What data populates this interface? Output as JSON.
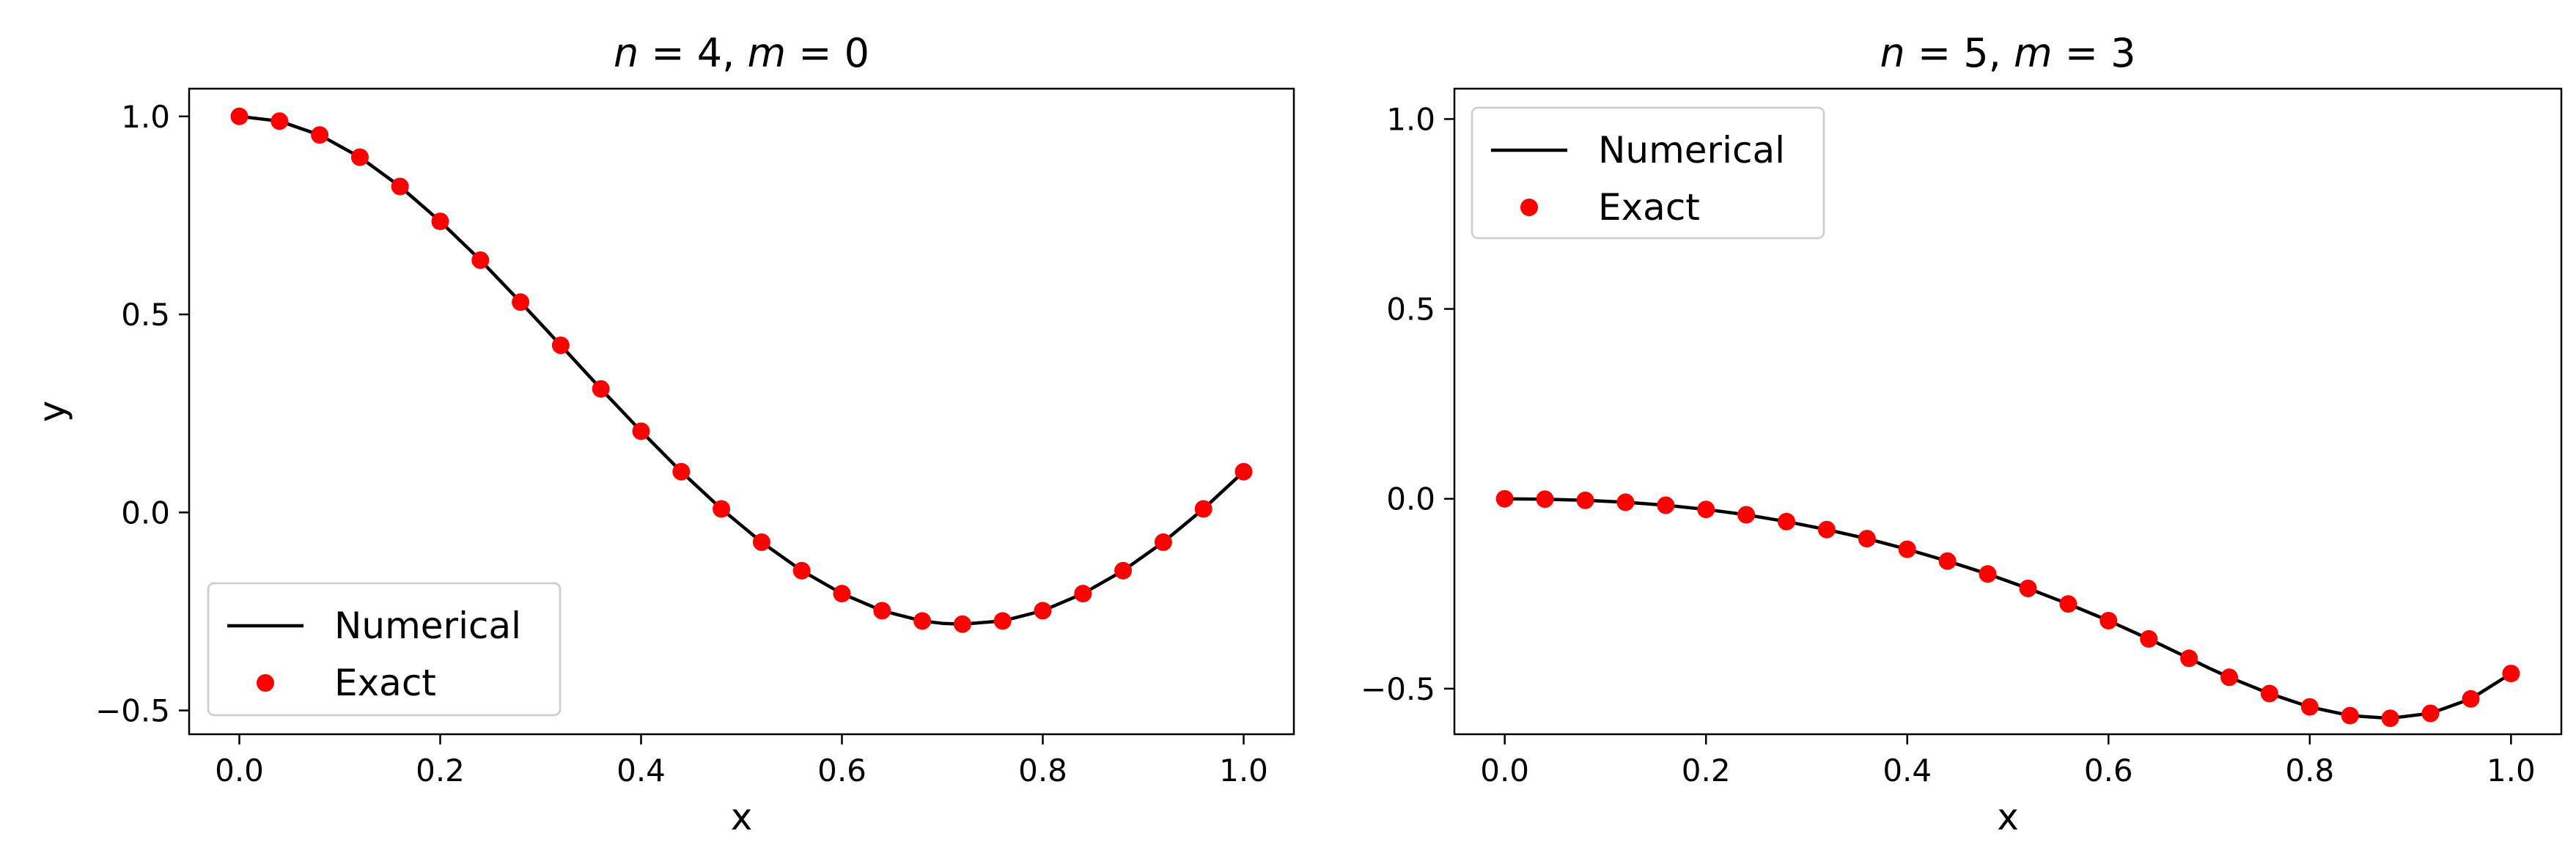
{
  "chart_data": [
    {
      "type": "line",
      "title": "n = 4, m = 0",
      "title_parts": [
        "n",
        " = 4, ",
        "m",
        " = 0"
      ],
      "xlabel": "x",
      "ylabel": "y",
      "xlim": [
        -0.05,
        1.05
      ],
      "ylim": [
        -0.56,
        1.07
      ],
      "xticks": [
        0.0,
        0.2,
        0.4,
        0.6,
        0.8,
        1.0
      ],
      "xtick_labels": [
        "0.0",
        "0.2",
        "0.4",
        "0.6",
        "0.8",
        "1.0"
      ],
      "yticks": [
        -0.5,
        0.0,
        0.5,
        1.0
      ],
      "ytick_labels": [
        "−0.5",
        "0.0",
        "0.5",
        "1.0"
      ],
      "grid": false,
      "legend": {
        "position": "lower-left",
        "entries": [
          "Numerical",
          "Exact"
        ]
      },
      "series": [
        {
          "name": "Numerical",
          "style": "line",
          "color": "#000000",
          "x": [
            0.0,
            0.04,
            0.08,
            0.12,
            0.16,
            0.2,
            0.24,
            0.28,
            0.32,
            0.36,
            0.4,
            0.44,
            0.48,
            0.52,
            0.56,
            0.6,
            0.64,
            0.68,
            0.7,
            0.72,
            0.76,
            0.8,
            0.84,
            0.88,
            0.92,
            0.96,
            1.0
          ],
          "y": [
            1.0,
            0.988,
            0.953,
            0.897,
            0.823,
            0.735,
            0.637,
            0.531,
            0.422,
            0.312,
            0.205,
            0.103,
            0.009,
            -0.075,
            -0.147,
            -0.205,
            -0.248,
            -0.274,
            -0.28,
            -0.282,
            -0.274,
            -0.248,
            -0.205,
            -0.147,
            -0.075,
            0.009,
            0.103
          ]
        },
        {
          "name": "Exact",
          "style": "markers",
          "color": "#ff0000",
          "x": [
            0.0,
            0.04,
            0.08,
            0.12,
            0.16,
            0.2,
            0.24,
            0.28,
            0.32,
            0.36,
            0.4,
            0.44,
            0.48,
            0.52,
            0.56,
            0.6,
            0.64,
            0.68,
            0.72,
            0.76,
            0.8,
            0.84,
            0.88,
            0.92,
            0.96,
            1.0
          ],
          "y": [
            1.0,
            0.988,
            0.953,
            0.897,
            0.823,
            0.735,
            0.637,
            0.531,
            0.422,
            0.312,
            0.205,
            0.103,
            0.009,
            -0.075,
            -0.147,
            -0.205,
            -0.248,
            -0.274,
            -0.282,
            -0.274,
            -0.248,
            -0.205,
            -0.147,
            -0.075,
            0.009,
            0.103
          ]
        }
      ]
    },
    {
      "type": "line",
      "title": "n = 5, m = 3",
      "title_parts": [
        "n",
        " = 5, ",
        "m",
        " = 3"
      ],
      "xlabel": "x",
      "ylabel": "",
      "xlim": [
        -0.05,
        1.05
      ],
      "ylim": [
        -0.62,
        1.08
      ],
      "xticks": [
        0.0,
        0.2,
        0.4,
        0.6,
        0.8,
        1.0
      ],
      "xtick_labels": [
        "0.0",
        "0.2",
        "0.4",
        "0.6",
        "0.8",
        "1.0"
      ],
      "yticks": [
        -0.5,
        0.0,
        0.5,
        1.0
      ],
      "ytick_labels": [
        "−0.5",
        "0.0",
        "0.5",
        "1.0"
      ],
      "grid": false,
      "legend": {
        "position": "upper-left",
        "entries": [
          "Numerical",
          "Exact"
        ]
      },
      "series": [
        {
          "name": "Numerical",
          "style": "line",
          "color": "#000000",
          "x": [
            0.0,
            0.04,
            0.08,
            0.12,
            0.16,
            0.2,
            0.24,
            0.28,
            0.32,
            0.36,
            0.4,
            0.44,
            0.48,
            0.52,
            0.56,
            0.6,
            0.64,
            0.68,
            0.7,
            0.72,
            0.76,
            0.8,
            0.84,
            0.88,
            0.92,
            0.96,
            1.0
          ],
          "y": [
            0.0,
            -0.001,
            -0.004,
            -0.009,
            -0.017,
            -0.028,
            -0.042,
            -0.06,
            -0.081,
            -0.105,
            -0.133,
            -0.164,
            -0.198,
            -0.236,
            -0.277,
            -0.321,
            -0.369,
            -0.42,
            -0.446,
            -0.47,
            -0.513,
            -0.548,
            -0.571,
            -0.578,
            -0.565,
            -0.527,
            -0.46
          ]
        },
        {
          "name": "Exact",
          "style": "markers",
          "color": "#ff0000",
          "x": [
            0.0,
            0.04,
            0.08,
            0.12,
            0.16,
            0.2,
            0.24,
            0.28,
            0.32,
            0.36,
            0.4,
            0.44,
            0.48,
            0.52,
            0.56,
            0.6,
            0.64,
            0.68,
            0.72,
            0.76,
            0.8,
            0.84,
            0.88,
            0.92,
            0.96,
            1.0
          ],
          "y": [
            0.0,
            -0.001,
            -0.004,
            -0.009,
            -0.017,
            -0.028,
            -0.042,
            -0.06,
            -0.081,
            -0.105,
            -0.133,
            -0.164,
            -0.198,
            -0.236,
            -0.277,
            -0.321,
            -0.369,
            -0.42,
            -0.47,
            -0.513,
            -0.548,
            -0.571,
            -0.578,
            -0.565,
            -0.527,
            -0.46
          ]
        }
      ]
    }
  ]
}
